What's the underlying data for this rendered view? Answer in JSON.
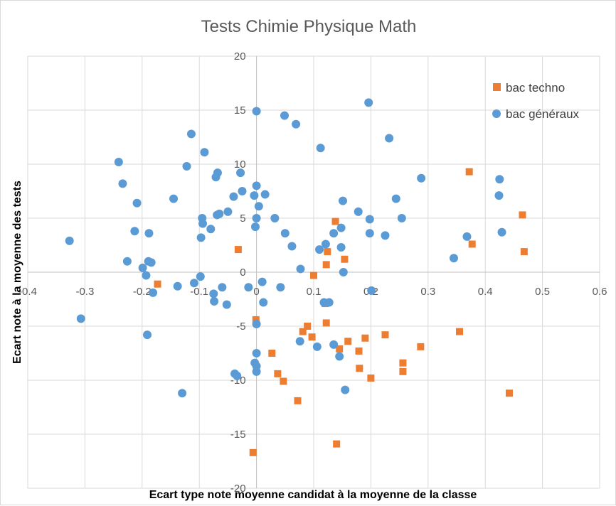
{
  "chart_data": {
    "type": "scatter",
    "title": "Tests Chimie Physique Math",
    "xlabel": "Ecart type note moyenne candidat à la moyenne de la classe",
    "ylabel": "Ecart note à la moyenne des tests",
    "xlim": [
      -0.4,
      0.6
    ],
    "ylim": [
      -20,
      20
    ],
    "x_ticks": [
      -0.4,
      -0.3,
      -0.2,
      -0.1,
      0,
      0.1,
      0.2,
      0.3,
      0.4,
      0.5,
      0.6
    ],
    "y_ticks": [
      -20,
      -15,
      -10,
      -5,
      0,
      5,
      10,
      15,
      20
    ],
    "x_tick_labels": [
      "-0.4",
      "-0.3",
      "-0.2",
      "-0.1",
      "0",
      "0.1",
      "0.2",
      "0.3",
      "0.4",
      "0.5",
      "0.6"
    ],
    "y_tick_labels": [
      "-20",
      "-15",
      "-10",
      "-5",
      "0",
      "5",
      "10",
      "15",
      "20"
    ],
    "grid": true,
    "legend_position": "top-right",
    "series": [
      {
        "name": "bac techno",
        "marker": "square",
        "color": "#ED7D31",
        "points": [
          [
            0.372,
            9.3
          ],
          [
            0.465,
            5.3
          ],
          [
            0.468,
            1.9
          ],
          [
            0.377,
            2.6
          ],
          [
            0.138,
            4.7
          ],
          [
            0.154,
            1.2
          ],
          [
            0.124,
            1.9
          ],
          [
            0.122,
            0.7
          ],
          [
            -0.032,
            2.1
          ],
          [
            -0.173,
            -1.1
          ],
          [
            0.1,
            -0.3
          ],
          [
            0.12,
            -2.9
          ],
          [
            0.122,
            -4.7
          ],
          [
            0.089,
            -5.0
          ],
          [
            0.081,
            -5.5
          ],
          [
            0.097,
            -6.0
          ],
          [
            0.145,
            -7.1
          ],
          [
            0.16,
            -6.4
          ],
          [
            0.179,
            -7.3
          ],
          [
            0.19,
            -6.1
          ],
          [
            0.225,
            -5.8
          ],
          [
            0.287,
            -6.9
          ],
          [
            0.355,
            -5.5
          ],
          [
            0.256,
            -8.4
          ],
          [
            0.256,
            -9.2
          ],
          [
            0.18,
            -8.9
          ],
          [
            0.2,
            -9.8
          ],
          [
            0.027,
            -7.5
          ],
          [
            0.037,
            -9.4
          ],
          [
            0.047,
            -10.1
          ],
          [
            0.072,
            -11.9
          ],
          [
            -0.001,
            -4.4
          ],
          [
            0.442,
            -11.2
          ],
          [
            0.14,
            -15.9
          ],
          [
            -0.006,
            -16.7
          ]
        ]
      },
      {
        "name": "bac généraux",
        "marker": "circle",
        "color": "#5B9BD5",
        "points": [
          [
            0.196,
            15.7
          ],
          [
            0.232,
            12.4
          ],
          [
            0.288,
            8.7
          ],
          [
            0.425,
            8.6
          ],
          [
            0.424,
            7.1
          ],
          [
            0.244,
            6.8
          ],
          [
            0.198,
            4.9
          ],
          [
            0.254,
            5.0
          ],
          [
            0.178,
            5.6
          ],
          [
            0.151,
            6.6
          ],
          [
            0.225,
            3.4
          ],
          [
            0.198,
            3.6
          ],
          [
            0.368,
            3.3
          ],
          [
            0.429,
            3.7
          ],
          [
            0.345,
            1.3
          ],
          [
            0.148,
            4.1
          ],
          [
            0.135,
            3.6
          ],
          [
            0.148,
            2.3
          ],
          [
            0.121,
            2.6
          ],
          [
            0.11,
            2.1
          ],
          [
            0.152,
            0.0
          ],
          [
            0.077,
            0.3
          ],
          [
            0.201,
            -1.7
          ],
          [
            0.118,
            -2.8
          ],
          [
            0.127,
            -2.8
          ],
          [
            0.135,
            -6.7
          ],
          [
            0.106,
            -6.9
          ],
          [
            0.145,
            -7.8
          ],
          [
            0.155,
            -10.9
          ],
          [
            0.076,
            -6.4
          ],
          [
            0.049,
            14.5
          ],
          [
            0.069,
            13.7
          ],
          [
            0.112,
            11.5
          ],
          [
            0.0,
            14.9
          ],
          [
            0.0,
            8.0
          ],
          [
            0.015,
            7.2
          ],
          [
            -0.004,
            7.1
          ],
          [
            0.004,
            6.1
          ],
          [
            -0.025,
            7.5
          ],
          [
            -0.04,
            7.0
          ],
          [
            -0.028,
            9.2
          ],
          [
            0.032,
            5.0
          ],
          [
            0.0,
            5.0
          ],
          [
            -0.002,
            4.2
          ],
          [
            0.05,
            3.6
          ],
          [
            0.062,
            2.4
          ],
          [
            0.01,
            -0.9
          ],
          [
            0.042,
            -1.4
          ],
          [
            0.012,
            -2.8
          ],
          [
            -0.014,
            -1.4
          ],
          [
            0.0,
            -4.8
          ],
          [
            0.0,
            -7.5
          ],
          [
            -0.003,
            -8.4
          ],
          [
            0.0,
            -8.7
          ],
          [
            0.0,
            -9.2
          ],
          [
            -0.038,
            -9.4
          ],
          [
            -0.034,
            -9.6
          ],
          [
            -0.13,
            -11.2
          ],
          [
            -0.114,
            12.8
          ],
          [
            -0.091,
            11.1
          ],
          [
            -0.122,
            9.8
          ],
          [
            -0.068,
            9.2
          ],
          [
            -0.071,
            8.8
          ],
          [
            -0.145,
            6.8
          ],
          [
            -0.209,
            6.4
          ],
          [
            -0.065,
            5.4
          ],
          [
            -0.069,
            5.3
          ],
          [
            -0.05,
            5.6
          ],
          [
            -0.095,
            5.0
          ],
          [
            -0.094,
            4.5
          ],
          [
            -0.08,
            4.0
          ],
          [
            -0.097,
            3.2
          ],
          [
            -0.213,
            3.8
          ],
          [
            -0.188,
            3.6
          ],
          [
            -0.226,
            1.0
          ],
          [
            -0.189,
            1.0
          ],
          [
            -0.184,
            0.9
          ],
          [
            -0.199,
            0.4
          ],
          [
            -0.193,
            -0.3
          ],
          [
            -0.098,
            -0.4
          ],
          [
            -0.109,
            -1.0
          ],
          [
            -0.138,
            -1.3
          ],
          [
            -0.06,
            -1.4
          ],
          [
            -0.075,
            -2.0
          ],
          [
            -0.074,
            -2.7
          ],
          [
            -0.052,
            -3.0
          ],
          [
            -0.181,
            -1.9
          ],
          [
            -0.241,
            10.2
          ],
          [
            -0.234,
            8.2
          ],
          [
            -0.327,
            2.9
          ],
          [
            -0.307,
            -4.3
          ],
          [
            -0.191,
            -5.8
          ]
        ]
      }
    ]
  }
}
